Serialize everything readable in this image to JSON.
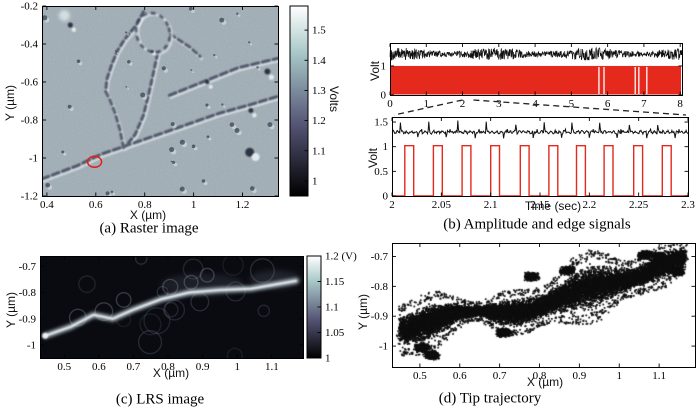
{
  "chart_data": [
    {
      "id": "raster",
      "type": "heatmap",
      "caption": "(a) Raster image",
      "xlabel": "X (µm)",
      "ylabel": "Y (µm)",
      "xlim": [
        0.38,
        1.345
      ],
      "ylim": [
        -1.2,
        -0.2
      ],
      "xtick_values": [
        0.4,
        0.6,
        0.8,
        1.0,
        1.2
      ],
      "xtick_labels": [
        "0.4",
        "0.6",
        "0.8",
        "1",
        "1.2"
      ],
      "ytick_values": [
        -0.2,
        -0.4,
        -0.6,
        -0.8,
        -1.0,
        -1.2
      ],
      "ytick_labels": [
        "-0.2",
        "-0.4",
        "-0.6",
        "-0.8",
        "-1",
        "-1.2"
      ],
      "colorbar": {
        "label": "Volts",
        "lim": [
          0.95,
          1.58
        ],
        "tick_values": [
          1.0,
          1.1,
          1.2,
          1.3,
          1.4,
          1.5
        ],
        "tick_labels": [
          "1",
          "1.1",
          "1.2",
          "1.3",
          "1.4",
          "1.5"
        ],
        "colormap": [
          "#000000",
          "#545474",
          "#a7c7c7",
          "#ffffff"
        ]
      },
      "base_color": "#a5b1b8",
      "annotation_circle": {
        "x": 0.595,
        "y": -1.02,
        "color": "#dd2020"
      },
      "ridge_paths_uv": [
        [
          [
            0,
            0.91
          ],
          [
            0.15,
            0.84
          ],
          [
            0.25,
            0.78
          ],
          [
            0.345,
            0.74
          ],
          [
            0.45,
            0.695
          ],
          [
            0.6,
            0.63
          ],
          [
            0.75,
            0.565
          ],
          [
            0.88,
            0.52
          ],
          [
            1,
            0.475
          ]
        ],
        [
          [
            0.54,
            0.47
          ],
          [
            0.7,
            0.39
          ],
          [
            0.83,
            0.325
          ],
          [
            0.95,
            0.29
          ],
          [
            1,
            0.275
          ]
        ],
        [
          [
            0.43,
            0.03
          ],
          [
            0.4,
            0.1
          ],
          [
            0.35,
            0.175
          ],
          [
            0.32,
            0.235
          ],
          [
            0.295,
            0.31
          ],
          [
            0.275,
            0.385
          ],
          [
            0.27,
            0.45
          ],
          [
            0.29,
            0.5
          ],
          [
            0.31,
            0.565
          ],
          [
            0.33,
            0.65
          ],
          [
            0.345,
            0.74
          ]
        ],
        [
          [
            0.49,
            0.25
          ],
          [
            0.47,
            0.365
          ],
          [
            0.45,
            0.475
          ],
          [
            0.43,
            0.575
          ],
          [
            0.395,
            0.675
          ],
          [
            0.36,
            0.73
          ],
          [
            0.345,
            0.745
          ]
        ],
        [
          [
            0.545,
            0.15
          ],
          [
            0.625,
            0.215
          ],
          [
            0.67,
            0.265
          ]
        ]
      ],
      "loop_uv": {
        "cx": 0.47,
        "cy": 0.14,
        "rx": 0.07,
        "ry": 0.105,
        "rot": -18
      }
    },
    {
      "id": "signals",
      "type": "line",
      "caption": "(b) Amplitude and edge signals",
      "series_colors": {
        "amplitude": "#111111",
        "edge": "#e5291d"
      },
      "full": {
        "ylabel": "Volt",
        "xlim": [
          0,
          8.05
        ],
        "xtick_values": [
          0,
          1,
          2,
          3,
          4,
          5,
          6,
          7,
          8
        ],
        "xtick_labels": [
          "0",
          "1",
          "2",
          "3",
          "4",
          "5",
          "6",
          "7",
          "8"
        ],
        "ylim": [
          0,
          1.79
        ],
        "ytick_values": [
          0,
          1
        ],
        "ytick_labels": [
          "0",
          "1"
        ],
        "amplitude_band": [
          1.2,
          1.62
        ],
        "edge_high": 1.0,
        "edge_low": 0,
        "edge_dropouts_x": [
          5.76,
          5.9,
          6.76,
          6.86,
          7.08
        ],
        "zoom_window": [
          2,
          2.3
        ]
      },
      "zoom": {
        "xlabel": "Time (sec)",
        "ylabel": "Volt",
        "xlim": [
          2,
          2.3
        ],
        "xtick_values": [
          2,
          2.05,
          2.1,
          2.15,
          2.2,
          2.25,
          2.3
        ],
        "xtick_labels": [
          "2",
          "2.05",
          "2.1",
          "2.15",
          "2.2",
          "2.25",
          "2.3"
        ],
        "ylim": [
          0,
          1.602
        ],
        "ytick_values": [
          0,
          0.5,
          1,
          1.5
        ],
        "ytick_labels": [
          "0",
          "0.5",
          "1",
          "1.5"
        ],
        "amplitude_baseline": 1.3,
        "spike_high": 1.5,
        "spike_low": 1.18,
        "pulse_starts": [
          2.013,
          2.042,
          2.071,
          2.1,
          2.13,
          2.159,
          2.187,
          2.215,
          2.245,
          2.274
        ],
        "pulse_width": 0.009,
        "pulse_high": 1.02
      }
    },
    {
      "id": "lrs",
      "type": "heatmap",
      "caption": "(c) LRS image",
      "xlabel": "X (µm)",
      "ylabel": "Y (µm)",
      "xlim": [
        0.43,
        1.19
      ],
      "ylim": [
        -1.05,
        -0.66
      ],
      "xtick_values": [
        0.5,
        0.6,
        0.7,
        0.8,
        0.9,
        1.0,
        1.1
      ],
      "xtick_labels": [
        "0.5",
        "0.6",
        "0.7",
        "0.8",
        "0.9",
        "1",
        "1.1"
      ],
      "ytick_values": [
        -0.7,
        -0.8,
        -0.9,
        -1.0
      ],
      "ytick_labels": [
        "-0.7",
        "-0.8",
        "-0.9",
        "-1"
      ],
      "colorbar": {
        "label": "",
        "lim": [
          1.0,
          1.2
        ],
        "tick_values": [
          1.0,
          1.05,
          1.1,
          1.15,
          1.2
        ],
        "tick_labels": [
          "1",
          "1.05",
          "1.1",
          "1.15",
          "1.2 (V)"
        ],
        "colormap": [
          "#000000",
          "#545474",
          "#a7c7c7",
          "#ffffff"
        ]
      },
      "background_color": "#0a0b11",
      "streak_points": [
        [
          0.445,
          -0.965
        ],
        [
          0.52,
          -0.93
        ],
        [
          0.585,
          -0.885
        ],
        [
          0.64,
          -0.9
        ],
        [
          0.7,
          -0.865
        ],
        [
          0.78,
          -0.825
        ],
        [
          0.86,
          -0.8
        ],
        [
          0.95,
          -0.79
        ],
        [
          1.04,
          -0.785
        ],
        [
          1.17,
          -0.755
        ]
      ]
    },
    {
      "id": "trajectory",
      "type": "scatter",
      "caption": "(d) Tip trajectory",
      "xlabel": "X (µm)",
      "ylabel": "Y (µm)",
      "xlim": [
        0.43,
        1.19
      ],
      "ylim": [
        -1.07,
        -0.655
      ],
      "xtick_values": [
        0.5,
        0.6,
        0.7,
        0.8,
        0.9,
        1.0,
        1.1
      ],
      "xtick_labels": [
        "0.5",
        "0.6",
        "0.7",
        "0.8",
        "0.9",
        "1",
        "1.1"
      ],
      "ytick_values": [
        -0.7,
        -0.8,
        -0.9,
        -1.0
      ],
      "ytick_labels": [
        "-0.7",
        "-0.8",
        "-0.9",
        "-1"
      ],
      "point_color": "#0e0e0e",
      "band": {
        "x_start": 0.45,
        "x_end": 1.165,
        "y_start": -0.955,
        "y_end": -0.73,
        "halfwidth": 0.055
      },
      "clusters": [
        [
          0.505,
          -1.005
        ],
        [
          0.475,
          -0.955
        ],
        [
          0.78,
          -0.768
        ],
        [
          0.87,
          -0.747
        ],
        [
          1.065,
          -0.695
        ],
        [
          1.1,
          -0.7
        ],
        [
          1.145,
          -0.75
        ],
        [
          0.71,
          -0.955
        ],
        [
          0.53,
          -1.03
        ]
      ]
    }
  ]
}
